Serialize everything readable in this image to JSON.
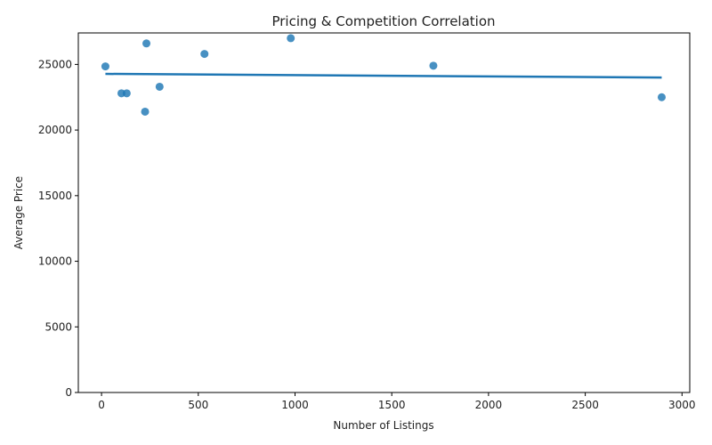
{
  "chart_data": {
    "type": "scatter",
    "title": "Pricing & Competition Correlation",
    "xlabel": "Number of Listings",
    "ylabel": "Average Price",
    "xlim": [
      -120,
      3040
    ],
    "ylim": [
      0,
      27400
    ],
    "xticks": [
      0,
      500,
      1000,
      1500,
      2000,
      2500,
      3000
    ],
    "yticks": [
      0,
      5000,
      10000,
      15000,
      20000,
      25000
    ],
    "grid": false,
    "legend": "none",
    "series": [
      {
        "points": [
          {
            "x": 20,
            "y": 24850
          },
          {
            "x": 103,
            "y": 22800
          },
          {
            "x": 130,
            "y": 22800
          },
          {
            "x": 225,
            "y": 21400
          },
          {
            "x": 232,
            "y": 26600
          },
          {
            "x": 300,
            "y": 23300
          },
          {
            "x": 532,
            "y": 25800
          },
          {
            "x": 978,
            "y": 27000
          },
          {
            "x": 1715,
            "y": 24900
          },
          {
            "x": 2895,
            "y": 22500
          }
        ]
      }
    ],
    "trendline": {
      "x": [
        20,
        2895
      ],
      "y": [
        24280,
        24000
      ]
    },
    "colors": {
      "points": "#1f77b4",
      "trendline": "#1f77b4"
    }
  }
}
